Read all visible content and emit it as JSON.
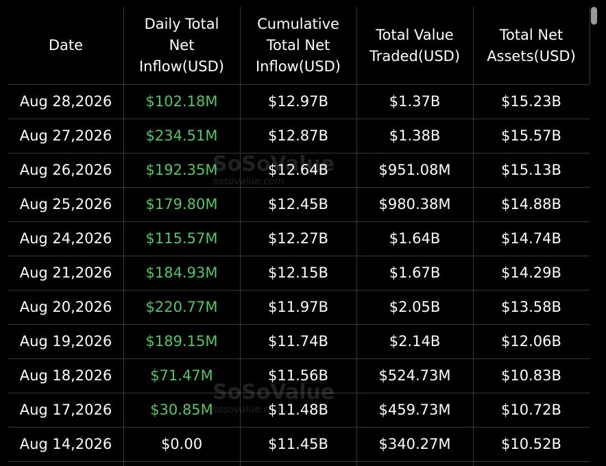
{
  "table": {
    "headers": [
      [
        "Date"
      ],
      [
        "Daily Total",
        "Net",
        "Inflow(USD)"
      ],
      [
        "Cumulative",
        "Total Net",
        "Inflow(USD)"
      ],
      [
        "Total Value",
        "Traded(USD)"
      ],
      [
        "Total Net",
        "Assets(USD)"
      ]
    ],
    "rows": [
      [
        "Aug 28,2026",
        "$102.18M",
        "$12.97B",
        "$1.37B",
        "$15.23B"
      ],
      [
        "Aug 27,2026",
        "$234.51M",
        "$12.87B",
        "$1.38B",
        "$15.57B"
      ],
      [
        "Aug 26,2026",
        "$192.35M",
        "$12.64B",
        "$951.08M",
        "$15.13B"
      ],
      [
        "Aug 25,2026",
        "$179.80M",
        "$12.45B",
        "$980.38M",
        "$14.88B"
      ],
      [
        "Aug 24,2026",
        "$115.57M",
        "$12.27B",
        "$1.64B",
        "$14.74B"
      ],
      [
        "Aug 21,2026",
        "$184.93M",
        "$12.15B",
        "$1.67B",
        "$14.29B"
      ],
      [
        "Aug 20,2026",
        "$220.77M",
        "$11.97B",
        "$2.05B",
        "$13.58B"
      ],
      [
        "Aug 19,2026",
        "$189.15M",
        "$11.74B",
        "$2.14B",
        "$12.06B"
      ],
      [
        "Aug 18,2026",
        "$71.47M",
        "$11.56B",
        "$524.73M",
        "$10.83B"
      ],
      [
        "Aug 17,2026",
        "$30.85M",
        "$11.48B",
        "$459.73M",
        "$10.72B"
      ],
      [
        "Aug 14,2026",
        "$0.00",
        "$11.45B",
        "$340.27M",
        "$10.52B"
      ]
    ],
    "inflow_colors": [
      "#5cc46b",
      "#5cc46b",
      "#5cc46b",
      "#5cc46b",
      "#5cc46b",
      "#5cc46b",
      "#5cc46b",
      "#5cc46b",
      "#5cc46b",
      "#5cc46b",
      "#ffffff"
    ]
  },
  "watermark": {
    "name": "SoSoValue",
    "url": "sosovalue.com"
  }
}
